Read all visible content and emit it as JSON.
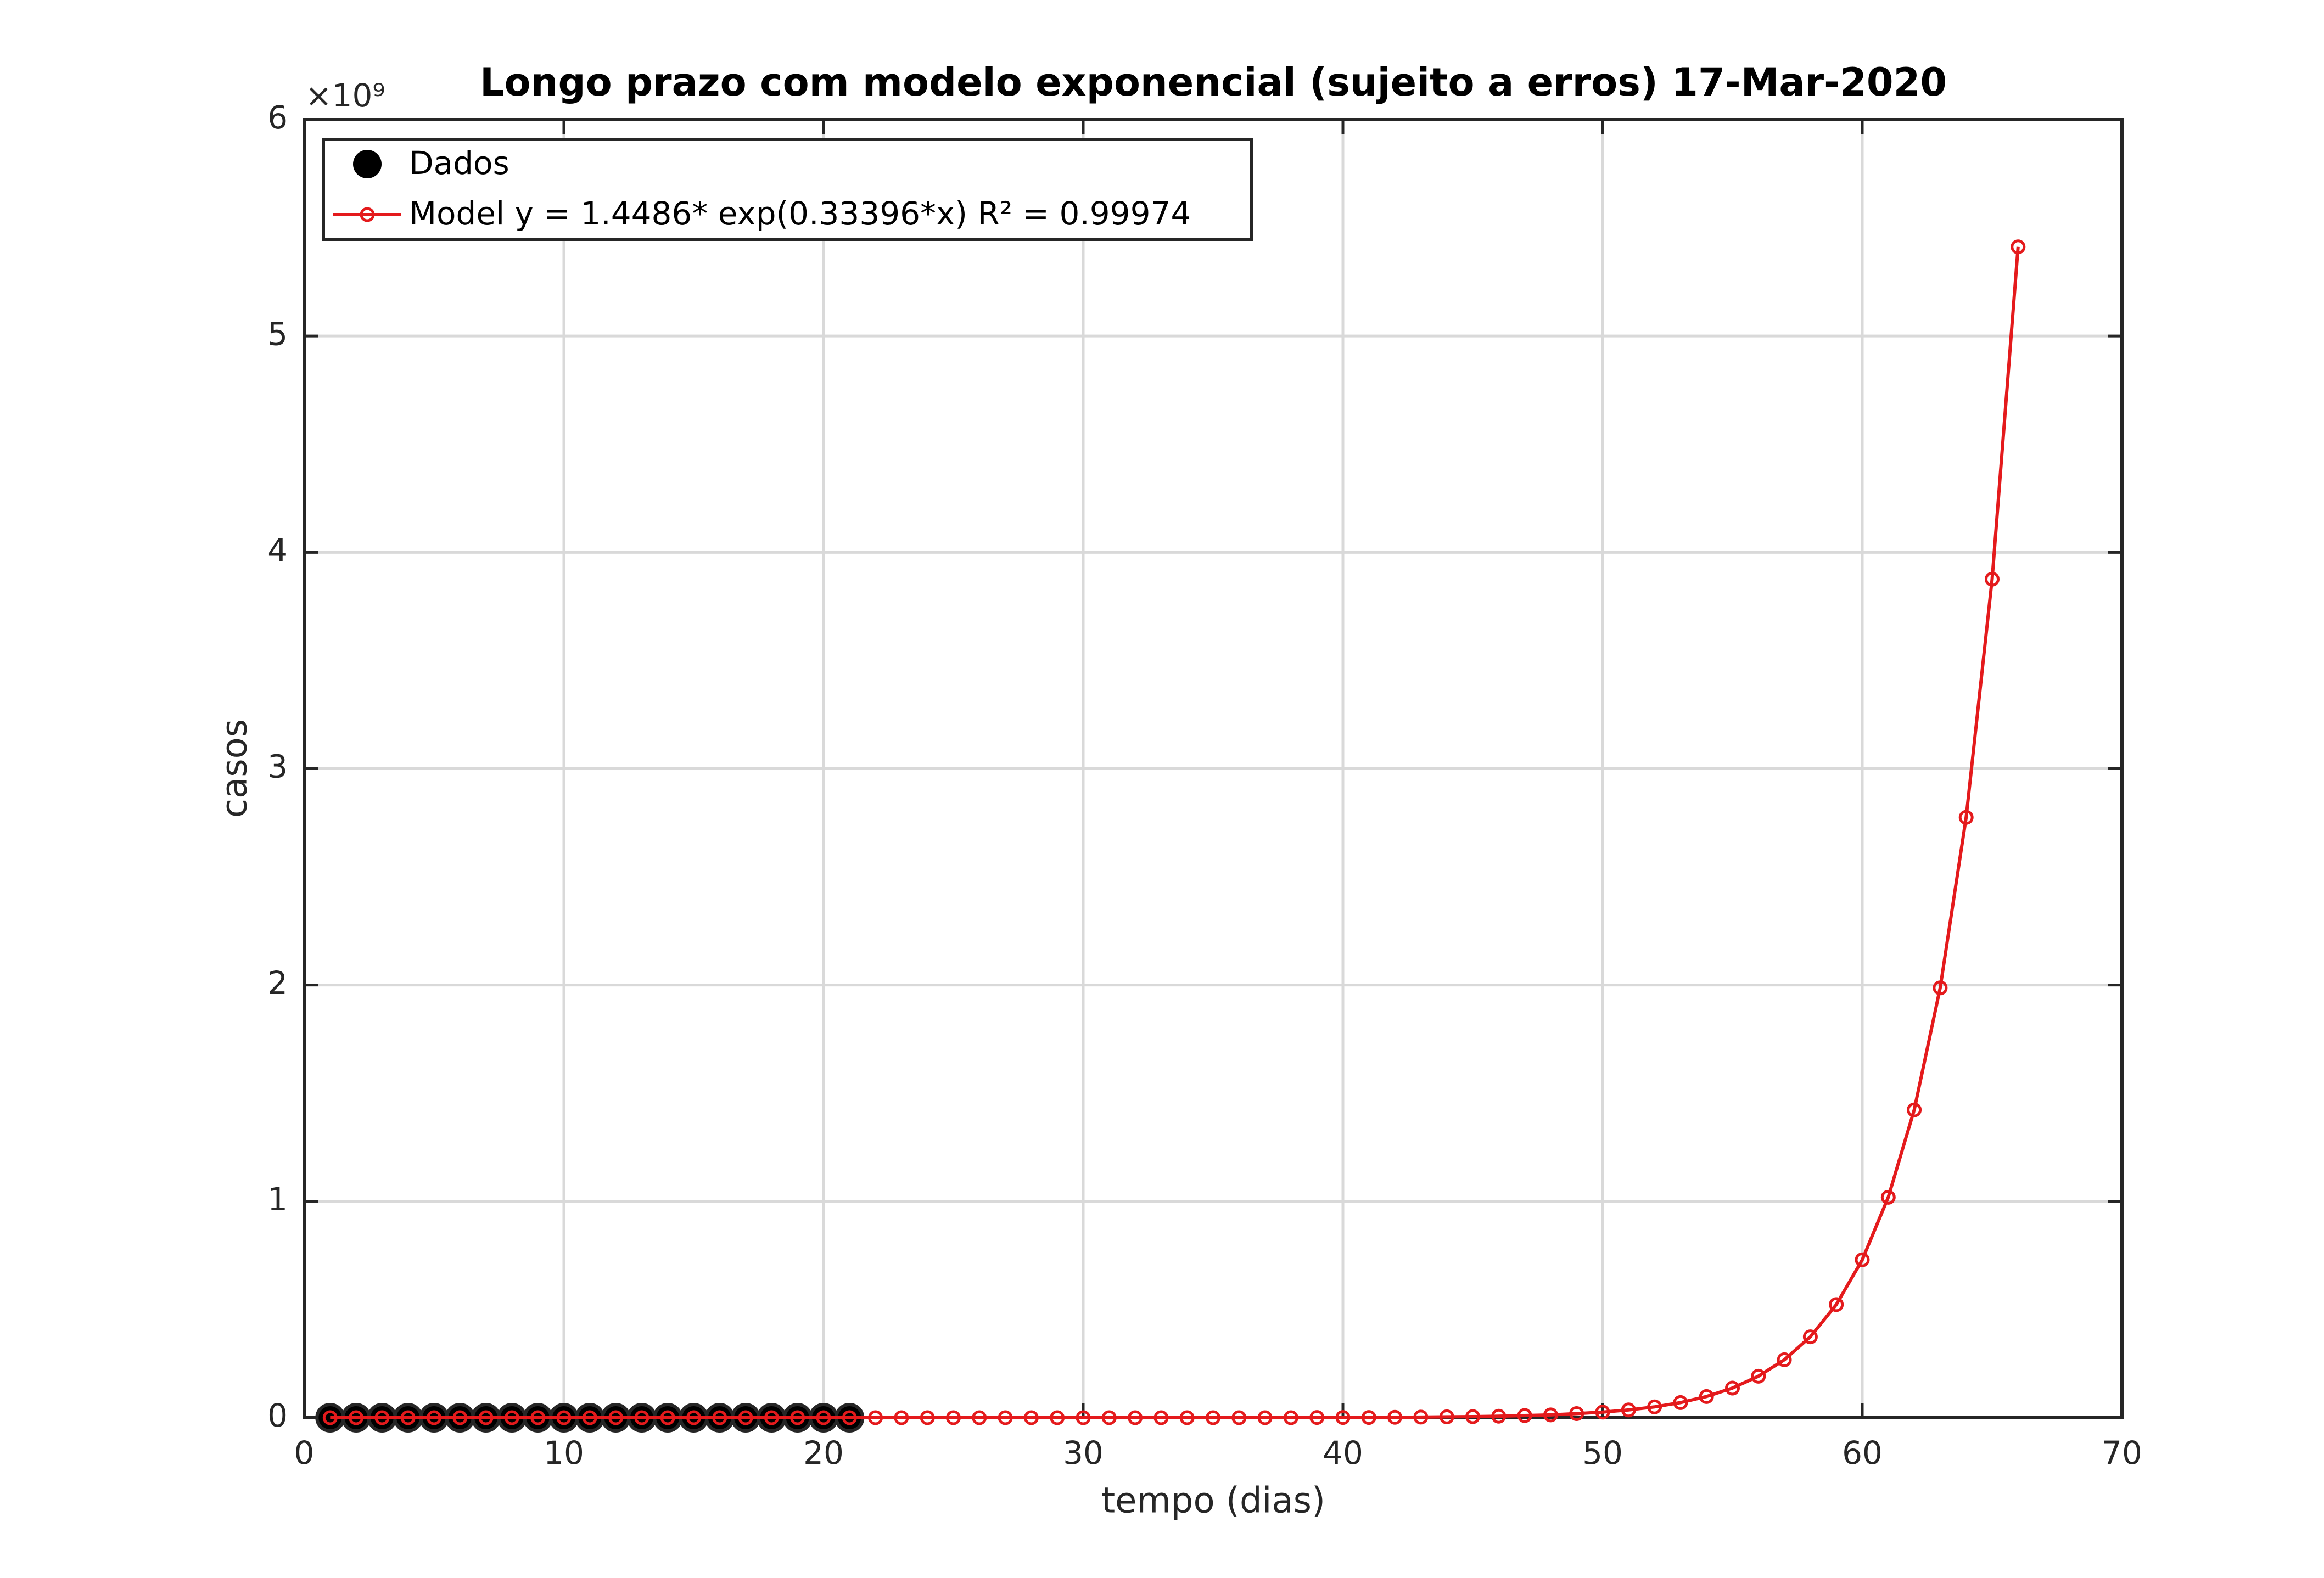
{
  "chart_data": {
    "type": "line",
    "title": "Longo prazo com modelo exponencial (sujeito a erros) 17-Mar-2020",
    "xlabel": "tempo (dias)",
    "ylabel": "casos",
    "y_exponent_label": "×10⁹",
    "xlim": [
      0,
      70
    ],
    "ylim": [
      0,
      6
    ],
    "xticks": [
      0,
      10,
      20,
      30,
      40,
      50,
      60,
      70
    ],
    "yticks": [
      0,
      1,
      2,
      3,
      4,
      5,
      6
    ],
    "grid": true,
    "legend": "upper left",
    "series": [
      {
        "name": "Dados",
        "color": "#000000",
        "style": "markers",
        "x": [
          1,
          2,
          3,
          4,
          5,
          6,
          7,
          8,
          9,
          10,
          11,
          12,
          13,
          14,
          15,
          16,
          17,
          18,
          19,
          20,
          21
        ],
        "values": [
          0,
          0,
          0,
          0,
          0,
          0,
          0,
          0,
          0,
          0,
          0,
          0,
          0,
          0,
          0,
          0,
          0,
          0,
          0,
          0,
          0
        ]
      },
      {
        "name": "Model y = 1.4486* exp(0.33396*x)  R² = 0.99974",
        "color": "#e41a1c",
        "style": "line-markers",
        "x": [
          1,
          2,
          3,
          4,
          5,
          6,
          7,
          8,
          9,
          10,
          11,
          12,
          13,
          14,
          15,
          16,
          17,
          18,
          19,
          20,
          21,
          22,
          23,
          24,
          25,
          26,
          27,
          28,
          29,
          30,
          31,
          32,
          33,
          34,
          35,
          36,
          37,
          38,
          39,
          40,
          41,
          42,
          43,
          44,
          45,
          46,
          47,
          48,
          49,
          50,
          51,
          52,
          53,
          54,
          55,
          56,
          57,
          58,
          59,
          60,
          61,
          62,
          63,
          64,
          65,
          66
        ],
        "values": [
          0,
          0,
          0,
          0,
          0,
          0,
          0,
          0,
          0,
          0,
          0,
          0,
          0,
          0,
          0,
          0,
          0,
          0,
          0,
          0,
          0,
          0,
          0,
          0,
          0,
          0,
          0,
          0,
          0,
          0,
          0,
          0,
          0,
          0,
          0,
          0,
          0,
          0,
          0.001,
          0.001,
          0.001,
          0.002,
          0.003,
          0.004,
          0.005,
          0.007,
          0.01,
          0.013,
          0.019,
          0.026,
          0.036,
          0.05,
          0.07,
          0.098,
          0.137,
          0.192,
          0.268,
          0.374,
          0.523,
          0.73,
          1.019,
          1.423,
          1.987,
          2.775,
          3.876,
          5.412
        ]
      }
    ]
  }
}
